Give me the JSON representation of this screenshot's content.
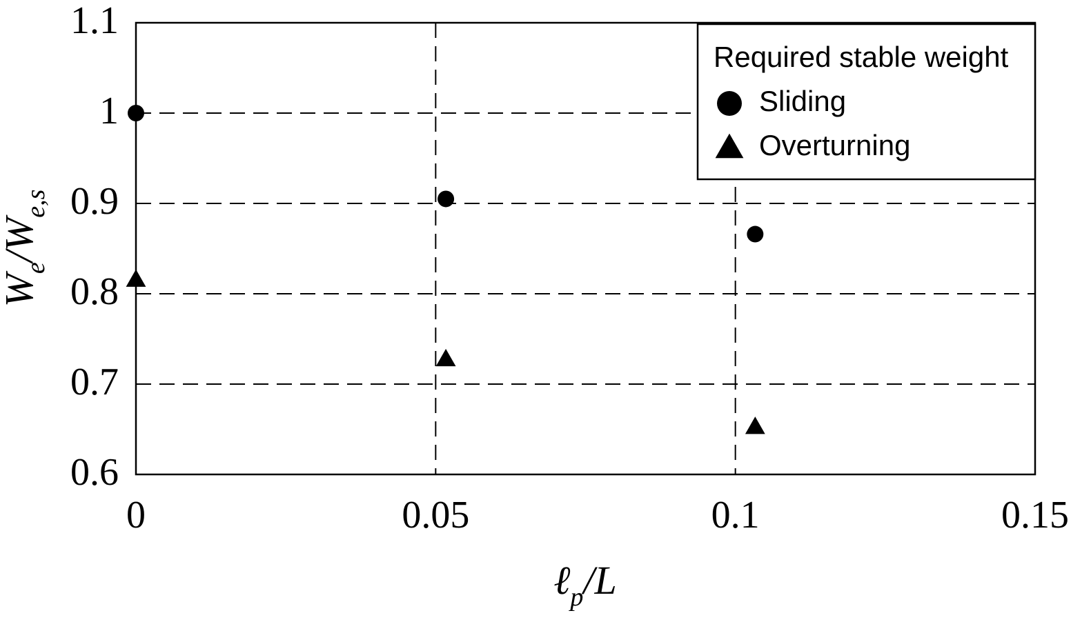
{
  "chart_data": {
    "type": "scatter",
    "xlabel": "ℓp/L",
    "ylabel": "We/We,s",
    "xlim": [
      0,
      0.15
    ],
    "xticks": [
      0,
      0.05,
      0.1,
      0.15
    ],
    "ylim": [
      0.6,
      1.1
    ],
    "yticks": [
      0.6,
      0.7,
      0.8,
      0.9,
      1,
      1.1
    ],
    "grid": true,
    "legend_title": "Required stable weight",
    "legend_position": "upper right",
    "series": [
      {
        "name": "Sliding",
        "marker": "circle",
        "color": "#000000",
        "x": [
          0,
          0.0517,
          0.1033
        ],
        "values": [
          1.0,
          0.905,
          0.866
        ]
      },
      {
        "name": "Overturning",
        "marker": "triangle",
        "color": "#000000",
        "x": [
          0,
          0.0517,
          0.1033
        ],
        "values": [
          0.816,
          0.728,
          0.653
        ]
      }
    ]
  }
}
